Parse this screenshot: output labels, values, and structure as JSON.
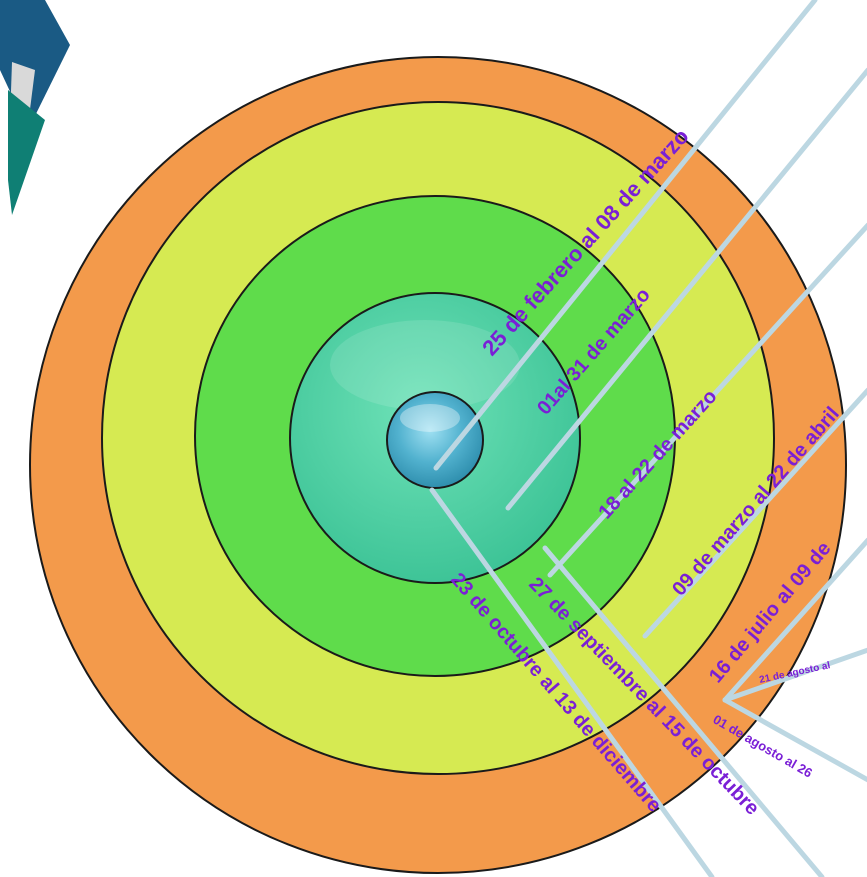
{
  "colors": {
    "ring_orange": "#f39a4b",
    "ring_yellow": "#d6ea52",
    "ring_green": "#5fdc4b",
    "ring_teal": "#4bd0a0",
    "center_blue": "#52b2cf",
    "leader_line": "#bcd7e2",
    "label_text": "#7a1fd6",
    "accent_blue": "#1a5a84",
    "accent_teal": "#0f7f74"
  },
  "labels": {
    "l1": "25 de febrero al 08 de marzo",
    "l2": "01al 31 de marzo",
    "l3": "18 al 22 de marzo",
    "l4": "09 de marzo al 22 de abril",
    "l5": "16 de julio al 09 de",
    "l6": "21 de agosto al",
    "l7": "01 de agosto al 26",
    "l8": "27 de septiembre al 15 de octubre",
    "l9": "23 de octubre al 13 de diciembre"
  }
}
